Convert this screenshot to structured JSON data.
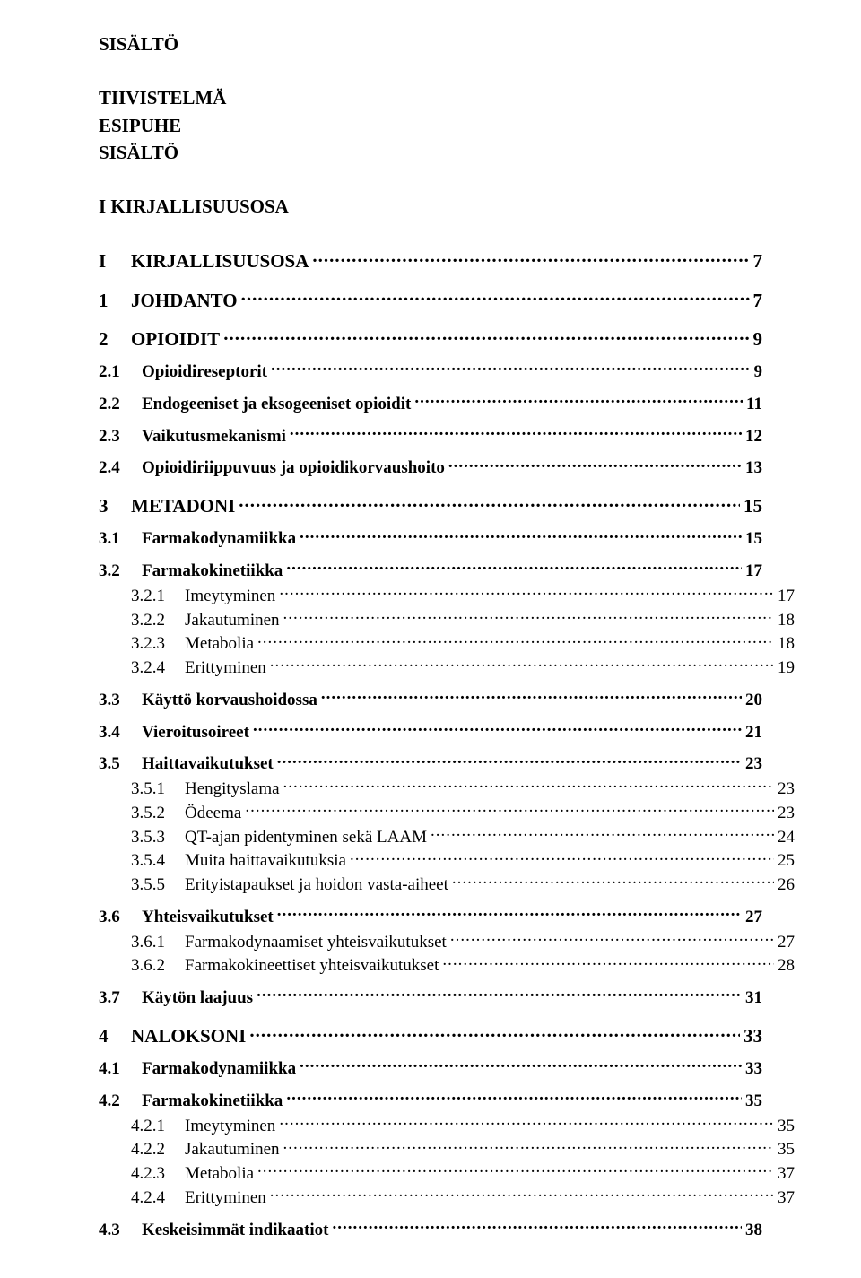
{
  "pre": {
    "line1": "SISÄLTÖ",
    "line2": "TIIVISTELMÄ",
    "line3": "ESIPUHE",
    "line4": "SISÄLTÖ",
    "line5": "I KIRJALLISUUSOSA"
  },
  "toc": [
    {
      "level": 1,
      "num": "I",
      "title": "KIRJALLISUUSOSA",
      "page": "7"
    },
    {
      "level": 1,
      "num": "1",
      "title": "JOHDANTO",
      "page": "7"
    },
    {
      "level": 1,
      "num": "2",
      "title": "OPIOIDIT",
      "page": "9"
    },
    {
      "level": 2,
      "num": "2.1",
      "title": "Opioidireseptorit",
      "page": "9"
    },
    {
      "level": 2,
      "num": "2.2",
      "title": "Endogeeniset ja eksogeeniset opioidit",
      "page": "11"
    },
    {
      "level": 2,
      "num": "2.3",
      "title": "Vaikutusmekanismi",
      "page": "12"
    },
    {
      "level": 2,
      "num": "2.4",
      "title": "Opioidiriippuvuus ja opioidikorvaushoito",
      "page": "13"
    },
    {
      "level": 1,
      "num": "3",
      "title": "METADONI",
      "page": "15"
    },
    {
      "level": 2,
      "num": "3.1",
      "title": "Farmakodynamiikka",
      "page": "15"
    },
    {
      "level": 2,
      "num": "3.2",
      "title": "Farmakokinetiikka",
      "page": "17"
    },
    {
      "level": 3,
      "num": "3.2.1",
      "title": "Imeytyminen",
      "page": "17"
    },
    {
      "level": 3,
      "num": "3.2.2",
      "title": "Jakautuminen",
      "page": "18"
    },
    {
      "level": 3,
      "num": "3.2.3",
      "title": "Metabolia",
      "page": "18"
    },
    {
      "level": 3,
      "num": "3.2.4",
      "title": "Erittyminen",
      "page": "19"
    },
    {
      "level": 2,
      "num": "3.3",
      "title": "Käyttö korvaushoidossa",
      "page": "20"
    },
    {
      "level": 2,
      "num": "3.4",
      "title": "Vieroitusoireet",
      "page": "21"
    },
    {
      "level": 2,
      "num": "3.5",
      "title": "Haittavaikutukset",
      "page": "23"
    },
    {
      "level": 3,
      "num": "3.5.1",
      "title": "Hengityslama",
      "page": "23"
    },
    {
      "level": 3,
      "num": "3.5.2",
      "title": "Ödeema",
      "page": "23"
    },
    {
      "level": 3,
      "num": "3.5.3",
      "title": "QT-ajan pidentyminen sekä LAAM",
      "page": "24"
    },
    {
      "level": 3,
      "num": "3.5.4",
      "title": "Muita haittavaikutuksia",
      "page": "25"
    },
    {
      "level": 3,
      "num": "3.5.5",
      "title": "Erityistapaukset ja hoidon vasta-aiheet",
      "page": "26"
    },
    {
      "level": 2,
      "num": "3.6",
      "title": "Yhteisvaikutukset",
      "page": "27"
    },
    {
      "level": 3,
      "num": "3.6.1",
      "title": "Farmakodynaamiset yhteisvaikutukset",
      "page": "27"
    },
    {
      "level": 3,
      "num": "3.6.2",
      "title": "Farmakokineettiset yhteisvaikutukset",
      "page": "28"
    },
    {
      "level": 2,
      "num": "3.7",
      "title": "Käytön laajuus",
      "page": "31"
    },
    {
      "level": 1,
      "num": "4",
      "title": "NALOKSONI",
      "page": "33"
    },
    {
      "level": 2,
      "num": "4.1",
      "title": "Farmakodynamiikka",
      "page": "33"
    },
    {
      "level": 2,
      "num": "4.2",
      "title": "Farmakokinetiikka",
      "page": "35"
    },
    {
      "level": 3,
      "num": "4.2.1",
      "title": "Imeytyminen",
      "page": "35"
    },
    {
      "level": 3,
      "num": "4.2.2",
      "title": "Jakautuminen",
      "page": "35"
    },
    {
      "level": 3,
      "num": "4.2.3",
      "title": "Metabolia",
      "page": "37"
    },
    {
      "level": 3,
      "num": "4.2.4",
      "title": "Erittyminen",
      "page": "37"
    },
    {
      "level": 2,
      "num": "4.3",
      "title": "Keskeisimmät indikaatiot",
      "page": "38"
    }
  ]
}
